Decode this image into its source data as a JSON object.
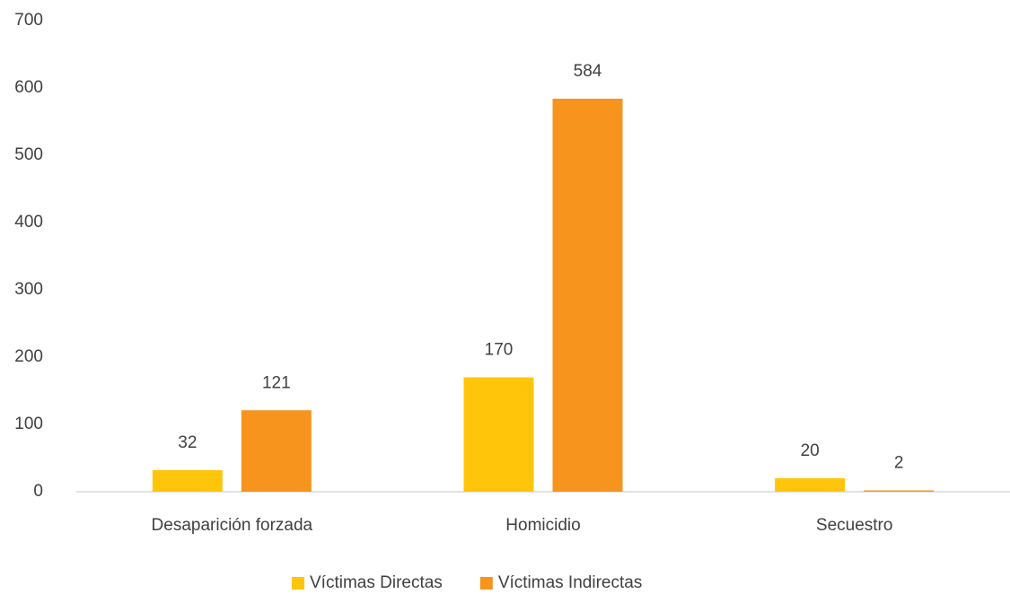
{
  "chart_data": {
    "type": "bar",
    "categories": [
      "Desaparición forzada",
      "Homicidio",
      "Secuestro"
    ],
    "series": [
      {
        "name": "Víctimas Directas",
        "color": "#FFC50A",
        "values": [
          32,
          170,
          20
        ]
      },
      {
        "name": "Víctimas Indirectas",
        "color": "#F7941D",
        "values": [
          121,
          584,
          2
        ]
      }
    ],
    "ylim": [
      0,
      700
    ],
    "yticks": [
      0,
      100,
      200,
      300,
      400,
      500,
      600,
      700
    ],
    "grid": false,
    "legend": "bottom"
  }
}
